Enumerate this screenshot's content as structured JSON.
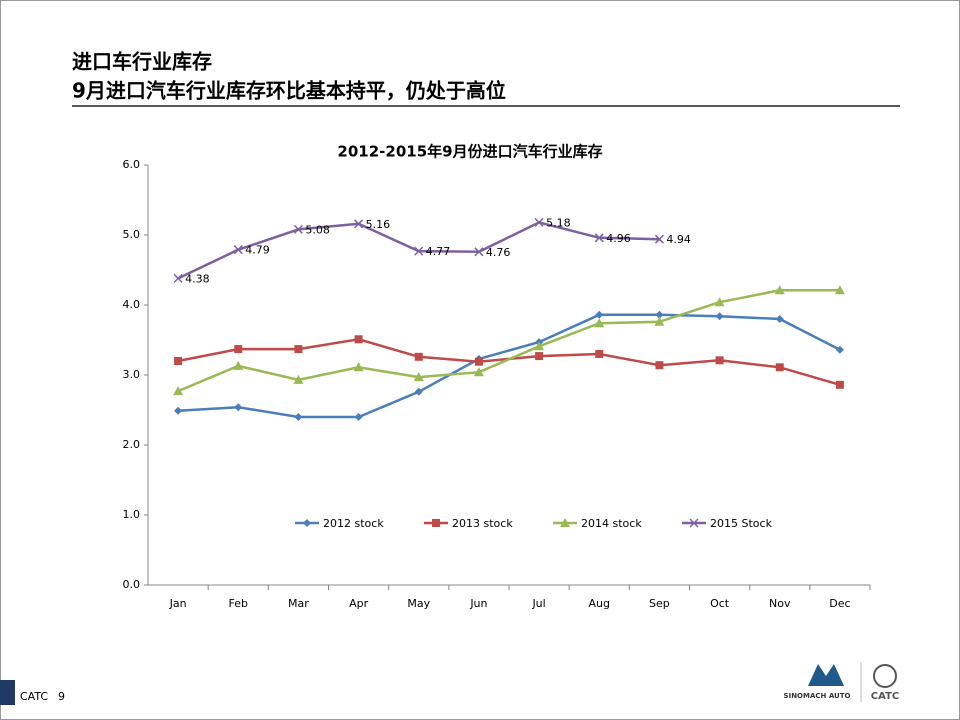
{
  "slide": {
    "title": "进口车行业库存",
    "subtitle": "9月进口汽车行业库存环比基本持平，仍处于高位",
    "footer_brand": "CATC",
    "page_number": "9",
    "logos": [
      "SINOMACH AUTO",
      "CATC"
    ]
  },
  "chart_data": {
    "type": "line",
    "title": "2012-2015年9月份进口汽车行业库存",
    "categories": [
      "Jan",
      "Feb",
      "Mar",
      "Apr",
      "May",
      "Jun",
      "Jul",
      "Aug",
      "Sep",
      "Oct",
      "Nov",
      "Dec"
    ],
    "series": [
      {
        "name": "2012 stock",
        "color": "#4a7ebb",
        "marker": "diamond",
        "values": [
          2.49,
          2.54,
          2.4,
          2.4,
          2.76,
          3.23,
          3.47,
          3.86,
          3.86,
          3.84,
          3.8,
          3.36
        ]
      },
      {
        "name": "2013 stock",
        "color": "#be4b48",
        "marker": "square",
        "values": [
          3.2,
          3.37,
          3.37,
          3.51,
          3.26,
          3.19,
          3.27,
          3.3,
          3.14,
          3.21,
          3.11,
          2.86
        ]
      },
      {
        "name": "2014 stock",
        "color": "#98b954",
        "marker": "triangle",
        "values": [
          2.77,
          3.13,
          2.93,
          3.11,
          2.97,
          3.04,
          3.41,
          3.74,
          3.76,
          4.04,
          4.21,
          4.21
        ]
      },
      {
        "name": "2015 Stock",
        "color": "#7d60a0",
        "marker": "x",
        "data_labels": true,
        "values": [
          4.38,
          4.79,
          5.08,
          5.16,
          4.77,
          4.76,
          5.18,
          4.96,
          4.94,
          null,
          null,
          null
        ]
      }
    ],
    "ylim": [
      0,
      6
    ],
    "yticks": [
      {
        "value": 0,
        "label": "0.0"
      },
      {
        "value": 1,
        "label": "1.0"
      },
      {
        "value": 2,
        "label": "2.0"
      },
      {
        "value": 3,
        "label": "3.0"
      },
      {
        "value": 4,
        "label": "4.0"
      },
      {
        "value": 5,
        "label": "5.0"
      },
      {
        "value": 6,
        "label": "6.0"
      }
    ],
    "legend": "bottom",
    "grid": false
  }
}
